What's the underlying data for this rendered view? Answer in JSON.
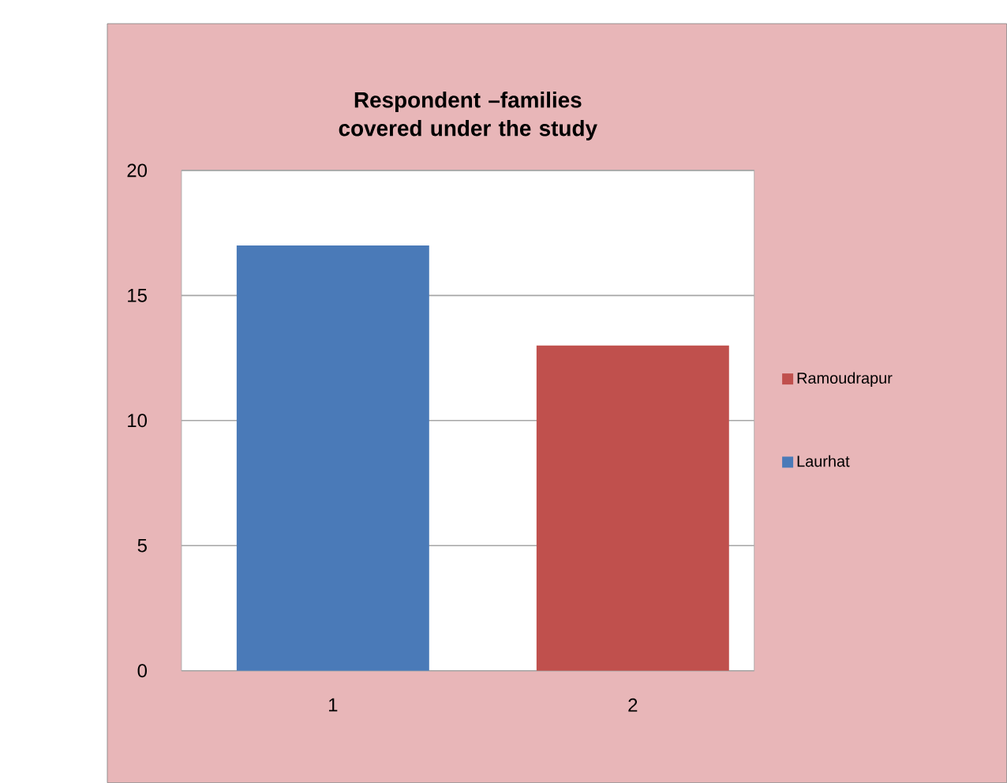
{
  "chart_data": {
    "type": "bar",
    "title": "Respondent –families covered under the study",
    "categories": [
      "1",
      "2"
    ],
    "series": [
      {
        "name": "Laurhat",
        "color": "#4a7ab8",
        "values": [
          17,
          null
        ]
      },
      {
        "name": "Ramoudrapur",
        "color": "#c0504d",
        "values": [
          null,
          13
        ]
      }
    ],
    "ylim": [
      0,
      20
    ],
    "yticks": [
      0,
      5,
      10,
      15,
      20
    ],
    "grid": "y",
    "legend": "right"
  }
}
